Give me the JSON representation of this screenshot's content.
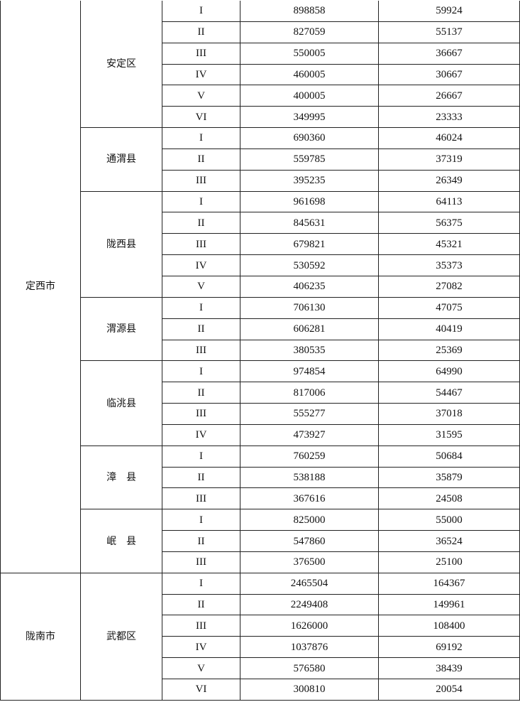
{
  "cities": [
    {
      "name": "定西市",
      "counties": [
        {
          "name": "安定区",
          "rows": [
            [
              "I",
              "898858",
              "59924"
            ],
            [
              "II",
              "827059",
              "55137"
            ],
            [
              "III",
              "550005",
              "36667"
            ],
            [
              "IV",
              "460005",
              "30667"
            ],
            [
              "V",
              "400005",
              "26667"
            ],
            [
              "VI",
              "349995",
              "23333"
            ]
          ]
        },
        {
          "name": "通渭县",
          "rows": [
            [
              "I",
              "690360",
              "46024"
            ],
            [
              "II",
              "559785",
              "37319"
            ],
            [
              "III",
              "395235",
              "26349"
            ]
          ]
        },
        {
          "name": "陇西县",
          "rows": [
            [
              "I",
              "961698",
              "64113"
            ],
            [
              "II",
              "845631",
              "56375"
            ],
            [
              "III",
              "679821",
              "45321"
            ],
            [
              "IV",
              "530592",
              "35373"
            ],
            [
              "V",
              "406235",
              "27082"
            ]
          ]
        },
        {
          "name": "渭源县",
          "rows": [
            [
              "I",
              "706130",
              "47075"
            ],
            [
              "II",
              "606281",
              "40419"
            ],
            [
              "III",
              "380535",
              "25369"
            ]
          ]
        },
        {
          "name": "临洮县",
          "rows": [
            [
              "I",
              "974854",
              "64990"
            ],
            [
              "II",
              "817006",
              "54467"
            ],
            [
              "III",
              "555277",
              "37018"
            ],
            [
              "IV",
              "473927",
              "31595"
            ]
          ]
        },
        {
          "name": "漳　县",
          "rows": [
            [
              "I",
              "760259",
              "50684"
            ],
            [
              "II",
              "538188",
              "35879"
            ],
            [
              "III",
              "367616",
              "24508"
            ]
          ]
        },
        {
          "name": "岷　县",
          "rows": [
            [
              "I",
              "825000",
              "55000"
            ],
            [
              "II",
              "547860",
              "36524"
            ],
            [
              "III",
              "376500",
              "25100"
            ]
          ]
        }
      ]
    },
    {
      "name": "陇南市",
      "counties": [
        {
          "name": "武都区",
          "rows": [
            [
              "I",
              "2465504",
              "164367"
            ],
            [
              "II",
              "2249408",
              "149961"
            ],
            [
              "III",
              "1626000",
              "108400"
            ],
            [
              "IV",
              "1037876",
              "69192"
            ],
            [
              "V",
              "576580",
              "38439"
            ],
            [
              "VI",
              "300810",
              "20054"
            ]
          ]
        }
      ]
    }
  ]
}
